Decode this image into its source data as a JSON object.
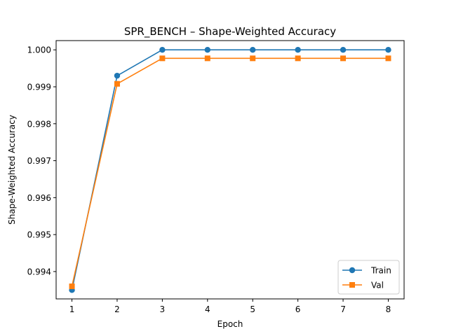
{
  "chart_data": {
    "type": "line",
    "title": "SPR_BENCH – Shape-Weighted Accuracy",
    "xlabel": "Epoch",
    "ylabel": "Shape-Weighted Accuracy",
    "x": [
      1,
      2,
      3,
      4,
      5,
      6,
      7,
      8
    ],
    "xticks": [
      "1",
      "2",
      "3",
      "4",
      "5",
      "6",
      "7",
      "8"
    ],
    "yticks": [
      "0.994",
      "0.995",
      "0.996",
      "0.997",
      "0.998",
      "0.999",
      "1.000"
    ],
    "ytick_values": [
      0.994,
      0.995,
      0.996,
      0.997,
      0.998,
      0.999,
      1.0
    ],
    "xlim": [
      0.65,
      8.35
    ],
    "ylim": [
      0.99326,
      1.00025
    ],
    "grid": false,
    "legend": "bottom-right",
    "series": [
      {
        "name": "Train",
        "color": "#1f77b4",
        "marker": "circle",
        "values": [
          0.9935,
          0.9993,
          1.0,
          1.0,
          1.0,
          1.0,
          1.0,
          1.0
        ]
      },
      {
        "name": "Val",
        "color": "#ff7f0e",
        "marker": "square",
        "values": [
          0.9936,
          0.99908,
          0.99977,
          0.99977,
          0.99977,
          0.99977,
          0.99977,
          0.99977
        ]
      }
    ]
  }
}
